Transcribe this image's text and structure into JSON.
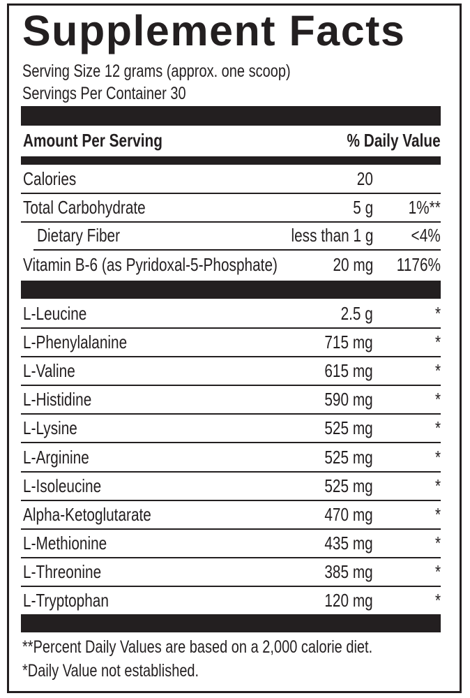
{
  "title": "Supplement Facts",
  "serving_size": "Serving Size 12 grams (approx. one scoop)",
  "servings_per_container": "Servings Per Container 30",
  "header": {
    "amount": "Amount Per Serving",
    "dv": "% Daily Value"
  },
  "nutrients": [
    {
      "name": "Calories",
      "amount": "20",
      "dv": ""
    },
    {
      "name": "Total Carbohydrate",
      "amount": "5 g",
      "dv": "1%**"
    },
    {
      "name": "Dietary Fiber",
      "amount": "less than 1 g",
      "dv": "<4%"
    },
    {
      "name": "Vitamin B-6 (as Pyridoxal-5-Phosphate)",
      "amount": "20 mg",
      "dv": "1176%"
    }
  ],
  "ingredients": [
    {
      "name": "L-Leucine",
      "amount": "2.5 g",
      "dv": "*"
    },
    {
      "name": "L-Phenylalanine",
      "amount": "715 mg",
      "dv": "*"
    },
    {
      "name": "L-Valine",
      "amount": "615 mg",
      "dv": "*"
    },
    {
      "name": "L-Histidine",
      "amount": "590 mg",
      "dv": "*"
    },
    {
      "name": "L-Lysine",
      "amount": "525 mg",
      "dv": "*"
    },
    {
      "name": "L-Arginine",
      "amount": "525 mg",
      "dv": "*"
    },
    {
      "name": "L-Isoleucine",
      "amount": "525 mg",
      "dv": "*"
    },
    {
      "name": "Alpha-Ketoglutarate",
      "amount": "470 mg",
      "dv": "*"
    },
    {
      "name": "L-Methionine",
      "amount": "435 mg",
      "dv": "*"
    },
    {
      "name": "L-Threonine",
      "amount": "385 mg",
      "dv": "*"
    },
    {
      "name": "L-Tryptophan",
      "amount": "120 mg",
      "dv": "*"
    }
  ],
  "footnotes": [
    "**Percent Daily Values are based on a 2,000 calorie diet.",
    "*Daily Value not established."
  ]
}
